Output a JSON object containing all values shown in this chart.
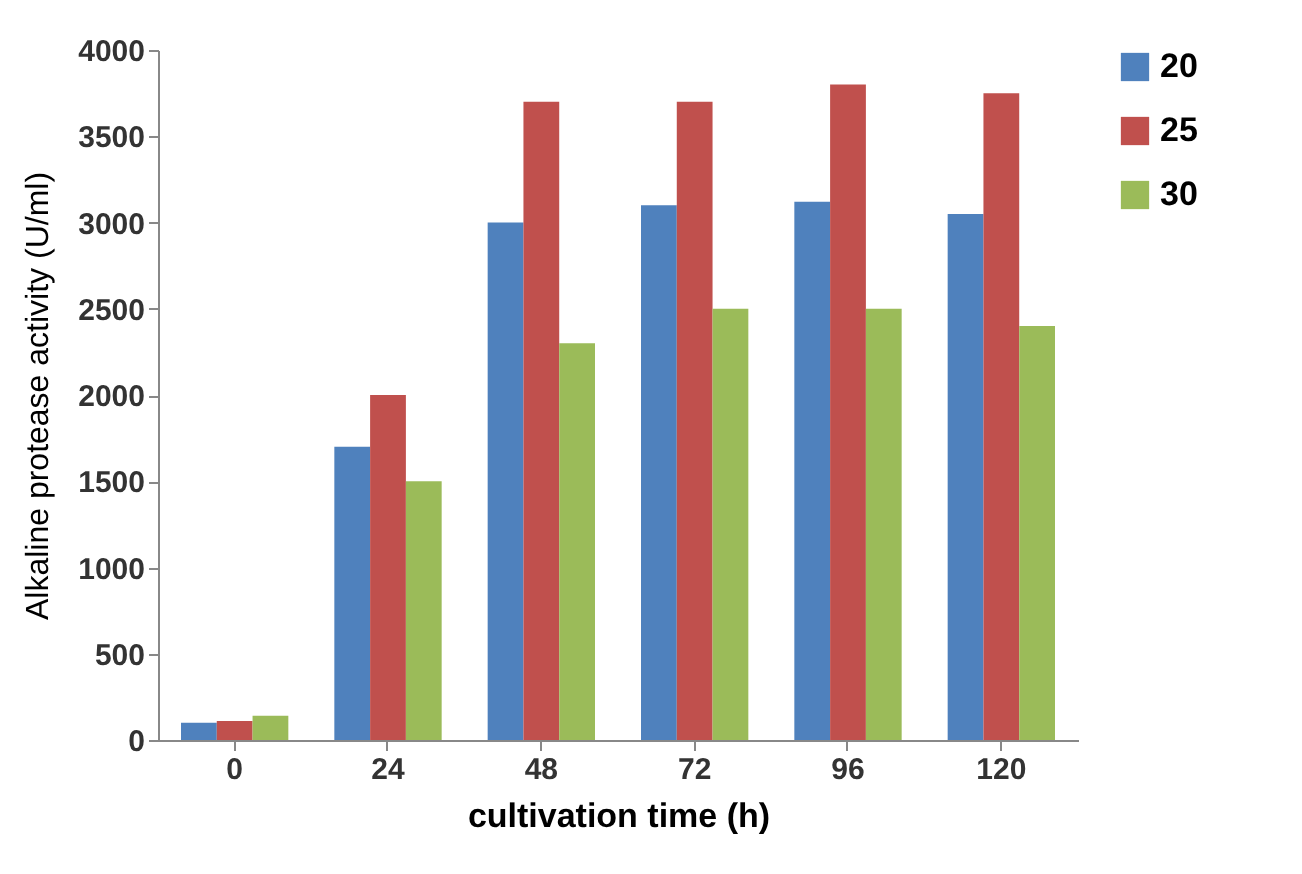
{
  "chart_data": {
    "type": "bar",
    "xlabel": "cultivation time (h)",
    "ylabel": "Alkaline protease activity (U/ml)",
    "categories": [
      "0",
      "24",
      "48",
      "72",
      "96",
      "120"
    ],
    "series": [
      {
        "name": "20",
        "color": "#4f81bd",
        "values": [
          100,
          1700,
          3000,
          3100,
          3120,
          3050
        ]
      },
      {
        "name": "25",
        "color": "#c0504d",
        "values": [
          110,
          2000,
          3700,
          3700,
          3800,
          3750
        ]
      },
      {
        "name": "30",
        "color": "#9bbb59",
        "values": [
          140,
          1500,
          2300,
          2500,
          2500,
          2400
        ]
      }
    ],
    "ylim": [
      0,
      4000
    ],
    "yticks": [
      0,
      500,
      1000,
      1500,
      2000,
      2500,
      3000,
      3500,
      4000
    ],
    "grid": false,
    "legend": "right"
  }
}
